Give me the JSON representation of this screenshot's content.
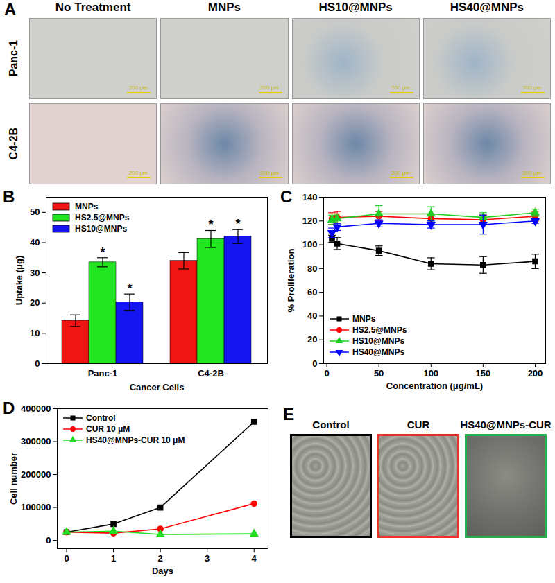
{
  "panel_A": {
    "label": "A",
    "columns": [
      "No Treatment",
      "MNPs",
      "HS10@MNPs",
      "HS40@MNPs"
    ],
    "rows": [
      "Panc-1",
      "C4-2B"
    ],
    "scale_bar": "200 μm"
  },
  "chart_data": [
    {
      "panel": "B",
      "type": "bar",
      "x_label": "Cancer Cells",
      "y_label": "Uptake (μg)",
      "categories": [
        "Panc-1",
        "C4-2B"
      ],
      "series": [
        {
          "name": "MNPs",
          "color": "#f01414",
          "values": [
            14.2,
            34.0
          ],
          "errors": [
            1.9,
            2.7
          ],
          "annotations": [
            null,
            null
          ]
        },
        {
          "name": "HS2.5@MNPs",
          "color": "#22e622",
          "values": [
            33.5,
            41.2
          ],
          "errors": [
            1.5,
            2.8
          ],
          "annotations": [
            "*",
            "*"
          ]
        },
        {
          "name": "HS10@MNPs",
          "color": "#1414f0",
          "values": [
            20.3,
            42.0
          ],
          "errors": [
            2.7,
            2.3
          ],
          "annotations": [
            "*",
            "*"
          ]
        }
      ],
      "ylim": [
        0,
        55
      ],
      "yticks": [
        0,
        10,
        20,
        30,
        40,
        50
      ],
      "grid": false,
      "legend": "top left"
    },
    {
      "panel": "C",
      "type": "line",
      "x_label": "Concentration (μg/mL)",
      "y_label": "% Proliferation",
      "x": [
        5,
        10,
        50,
        100,
        150,
        200
      ],
      "series": [
        {
          "name": "MNPs",
          "color": "#000000",
          "marker": "square",
          "values": [
            105,
            101,
            95,
            84,
            83,
            86
          ],
          "errors": [
            3,
            5,
            4,
            5,
            7,
            6
          ]
        },
        {
          "name": "HS2.5@MNPs",
          "color": "#ff0000",
          "marker": "circle",
          "values": [
            122,
            123,
            124,
            122,
            121,
            124
          ],
          "errors": [
            5,
            5,
            4,
            4,
            4,
            4
          ]
        },
        {
          "name": "HS10@MNPs",
          "color": "#22cc22",
          "marker": "triangle-up",
          "values": [
            121,
            122,
            126,
            126,
            123,
            127
          ],
          "errors": [
            4,
            4,
            7,
            6,
            4,
            3
          ]
        },
        {
          "name": "HS40@MNPs",
          "color": "#0000ff",
          "marker": "triangle-down",
          "values": [
            110,
            115,
            118,
            117,
            117,
            120
          ],
          "errors": [
            4,
            3,
            3,
            3,
            8,
            2
          ]
        }
      ],
      "xlim": [
        -3,
        210
      ],
      "xticks": [
        0,
        50,
        100,
        150,
        200
      ],
      "ylim": [
        0,
        140
      ],
      "yticks": [
        0,
        20,
        40,
        60,
        80,
        100,
        120,
        140
      ],
      "grid": false,
      "legend": "bottom left"
    },
    {
      "panel": "D",
      "type": "line",
      "x_label": "Days",
      "y_label": "Cell number",
      "x": [
        0,
        1,
        2,
        4
      ],
      "series": [
        {
          "name": "Control",
          "color": "#000000",
          "marker": "square",
          "values": [
            25000,
            50000,
            100000,
            360000
          ]
        },
        {
          "name": "CUR 10 μM",
          "color": "#ff0000",
          "marker": "circle",
          "values": [
            25000,
            22000,
            35000,
            112000
          ]
        },
        {
          "name": "HS40@MNPs-CUR 10 μM",
          "color": "#22dd22",
          "marker": "triangle-up",
          "values": [
            25000,
            28000,
            18000,
            20000
          ]
        }
      ],
      "xlim": [
        -0.2,
        4.3
      ],
      "xticks": [
        0,
        1,
        2,
        3,
        4
      ],
      "ylim": [
        -25000,
        400000
      ],
      "yticks": [
        0,
        100000,
        200000,
        300000,
        400000
      ],
      "grid": false,
      "legend": "top left"
    }
  ],
  "panel_E": {
    "label": "E",
    "images": [
      {
        "title": "Control",
        "color": "#000000"
      },
      {
        "title": "CUR",
        "color": "#e8322c"
      },
      {
        "title": "HS40@MNPs-CUR",
        "color": "#22b14c"
      }
    ]
  }
}
